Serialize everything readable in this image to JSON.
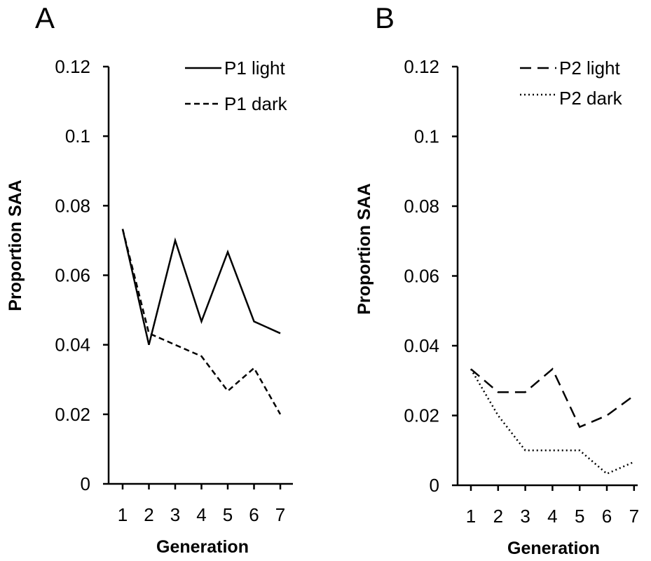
{
  "chart_data": [
    {
      "type": "line",
      "panel_label": "A",
      "xlabel": "Generation",
      "ylabel": "Proportion SAA",
      "x": [
        1,
        2,
        3,
        4,
        5,
        6,
        7
      ],
      "x_tick_labels": [
        "1",
        "2",
        "3",
        "4",
        "5",
        "6",
        "7"
      ],
      "y_tick_labels": [
        "0",
        "0.02",
        "0.04",
        "0.06",
        "0.08",
        "0.1",
        "0.12"
      ],
      "ylim": [
        0,
        0.12
      ],
      "legend_position": "top-right",
      "grid": false,
      "series": [
        {
          "name": "P1 light",
          "line_style": "solid",
          "values": [
            0.0733,
            0.04,
            0.07,
            0.0467,
            0.0667,
            0.0467,
            0.0433
          ]
        },
        {
          "name": "P1 dark",
          "line_style": "short-dash",
          "values": [
            0.0733,
            0.0433,
            0.04,
            0.0367,
            0.0267,
            0.0333,
            0.02
          ]
        }
      ]
    },
    {
      "type": "line",
      "panel_label": "B",
      "xlabel": "Generation",
      "ylabel": "Proportion SAA",
      "x": [
        1,
        2,
        3,
        4,
        5,
        6,
        7
      ],
      "x_tick_labels": [
        "1",
        "2",
        "3",
        "4",
        "5",
        "6",
        "7"
      ],
      "y_tick_labels": [
        "0",
        "0.02",
        "0.04",
        "0.06",
        "0.08",
        "0.1",
        "0.12"
      ],
      "ylim": [
        0,
        0.12
      ],
      "legend_position": "top-right",
      "grid": false,
      "series": [
        {
          "name": "P2 light",
          "line_style": "long-dash",
          "values": [
            0.0333,
            0.0267,
            0.0267,
            0.0333,
            0.0167,
            0.02,
            0.0257
          ]
        },
        {
          "name": "P2 dark",
          "line_style": "dotted",
          "values": [
            0.0333,
            0.02,
            0.01,
            0.01,
            0.01,
            0.0033,
            0.0067
          ]
        }
      ]
    }
  ]
}
